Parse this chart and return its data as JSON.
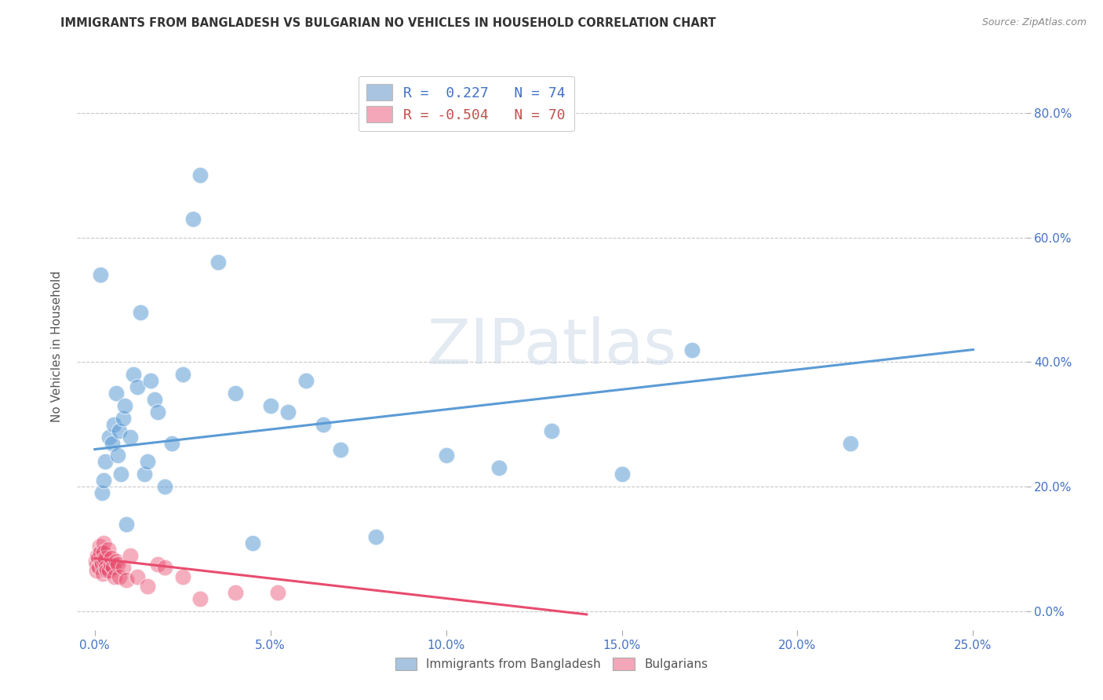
{
  "title": "IMMIGRANTS FROM BANGLADESH VS BULGARIAN NO VEHICLES IN HOUSEHOLD CORRELATION CHART",
  "source": "Source: ZipAtlas.com",
  "xlabel_vals": [
    0.0,
    5.0,
    10.0,
    15.0,
    20.0,
    25.0
  ],
  "ylabel_vals": [
    0.0,
    20.0,
    40.0,
    60.0,
    80.0
  ],
  "ylabel_label": "No Vehicles in Household",
  "xlim": [
    -0.5,
    26.5
  ],
  "ylim": [
    -3.0,
    88.0
  ],
  "watermark": "ZIPatlas",
  "legend_blue_label": "R =  0.227   N = 74",
  "legend_pink_label": "R = -0.504   N = 70",
  "legend_blue_color": "#a8c4e0",
  "legend_pink_color": "#f4a7b9",
  "legend_text_blue": "#4472c4",
  "legend_text_pink": "#c0504d",
  "blue_scatter_x": [
    0.15,
    0.2,
    0.25,
    0.3,
    0.4,
    0.5,
    0.55,
    0.6,
    0.65,
    0.7,
    0.75,
    0.8,
    0.85,
    0.9,
    1.0,
    1.1,
    1.2,
    1.3,
    1.4,
    1.5,
    1.6,
    1.7,
    1.8,
    2.0,
    2.2,
    2.5,
    2.8,
    3.0,
    3.5,
    4.0,
    4.5,
    5.0,
    5.5,
    6.0,
    6.5,
    7.0,
    8.0,
    10.0,
    11.5,
    13.0,
    15.0,
    17.0,
    21.5
  ],
  "blue_scatter_y": [
    54.0,
    19.0,
    21.0,
    24.0,
    28.0,
    27.0,
    30.0,
    35.0,
    25.0,
    29.0,
    22.0,
    31.0,
    33.0,
    14.0,
    28.0,
    38.0,
    36.0,
    48.0,
    22.0,
    24.0,
    37.0,
    34.0,
    32.0,
    20.0,
    27.0,
    38.0,
    63.0,
    70.0,
    56.0,
    35.0,
    11.0,
    33.0,
    32.0,
    37.0,
    30.0,
    26.0,
    12.0,
    25.0,
    23.0,
    29.0,
    22.0,
    42.0,
    27.0
  ],
  "pink_scatter_x": [
    0.02,
    0.04,
    0.06,
    0.08,
    0.1,
    0.12,
    0.14,
    0.16,
    0.18,
    0.2,
    0.22,
    0.24,
    0.26,
    0.28,
    0.3,
    0.32,
    0.35,
    0.38,
    0.4,
    0.44,
    0.48,
    0.52,
    0.56,
    0.6,
    0.65,
    0.7,
    0.8,
    0.9,
    1.0,
    1.2,
    1.5,
    1.8,
    2.0,
    2.5,
    3.0,
    4.0,
    5.2
  ],
  "pink_scatter_y": [
    8.0,
    7.5,
    6.5,
    9.0,
    8.5,
    7.0,
    10.5,
    9.5,
    8.0,
    7.5,
    6.0,
    11.0,
    9.5,
    8.0,
    8.5,
    7.0,
    6.5,
    10.0,
    6.5,
    7.5,
    8.5,
    7.0,
    5.5,
    8.0,
    7.5,
    5.5,
    7.0,
    5.0,
    9.0,
    5.5,
    4.0,
    7.5,
    7.0,
    5.5,
    2.0,
    3.0,
    3.0
  ],
  "blue_line_x0": 0.0,
  "blue_line_x1": 25.0,
  "blue_line_y0": 26.0,
  "blue_line_y1": 42.0,
  "pink_line_x0": 0.0,
  "pink_line_x1": 14.0,
  "pink_line_y0": 8.5,
  "pink_line_y1": -0.5,
  "blue_color": "#5b9bd5",
  "pink_color": "#e84c6e",
  "grid_color": "#c8c8c8",
  "title_color": "#333333",
  "axis_color": "#4472c4",
  "bg_color": "#ffffff",
  "bottom_legend_blue_label": "Immigrants from Bangladesh",
  "bottom_legend_pink_label": "Bulgarians"
}
